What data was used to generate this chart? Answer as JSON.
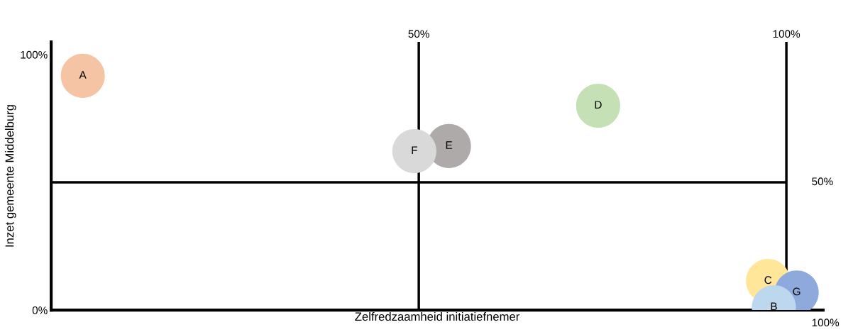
{
  "chart_data": {
    "type": "bubble",
    "xlabel": "Zelfredzaamheid initiatiefnemer",
    "ylabel": "Inzet gemeente Middelburg",
    "xlim": [
      0,
      105
    ],
    "ylim": [
      0,
      105
    ],
    "xticks": [
      {
        "value": 50,
        "label": "50%"
      },
      {
        "value": 100,
        "label": "100%"
      }
    ],
    "yticks": [
      {
        "value": 0,
        "label": "0%"
      },
      {
        "value": 100,
        "label": "100%"
      }
    ],
    "ref_lines": [
      {
        "axis": "x",
        "value": 50,
        "color": "#000000"
      },
      {
        "axis": "x",
        "value": 100,
        "color": "#000000"
      },
      {
        "axis": "y",
        "value": 50,
        "color": "#000000"
      }
    ],
    "annotations": [
      "50%",
      "100%"
    ],
    "grid": false,
    "legend": false,
    "series": [
      {
        "name": "A",
        "color": "#f4c4a4",
        "x": [
          4.3
        ],
        "values": [
          91.7
        ],
        "sizes": [
          1
        ]
      },
      {
        "name": "D",
        "color": "#c5e0b4",
        "x": [
          74.4
        ],
        "values": [
          80
        ],
        "sizes": [
          1
        ]
      },
      {
        "name": "E",
        "color": "#aeaaaa",
        "x": [
          54.1
        ],
        "values": [
          64.2
        ],
        "sizes": [
          1
        ]
      },
      {
        "name": "F",
        "color": "#d9d9d9",
        "x": [
          49.4
        ],
        "values": [
          62.2
        ],
        "sizes": [
          1
        ]
      },
      {
        "name": "C",
        "color": "#ffe699",
        "x": [
          97.5
        ],
        "values": [
          11.4
        ],
        "sizes": [
          1
        ]
      },
      {
        "name": "G",
        "color": "#8ea9db",
        "x": [
          101.4
        ],
        "values": [
          6.9
        ],
        "sizes": [
          1
        ]
      },
      {
        "name": "B",
        "color": "#bdd7ee",
        "x": [
          98.3
        ],
        "values": [
          1.1
        ],
        "sizes": [
          1
        ]
      }
    ]
  }
}
